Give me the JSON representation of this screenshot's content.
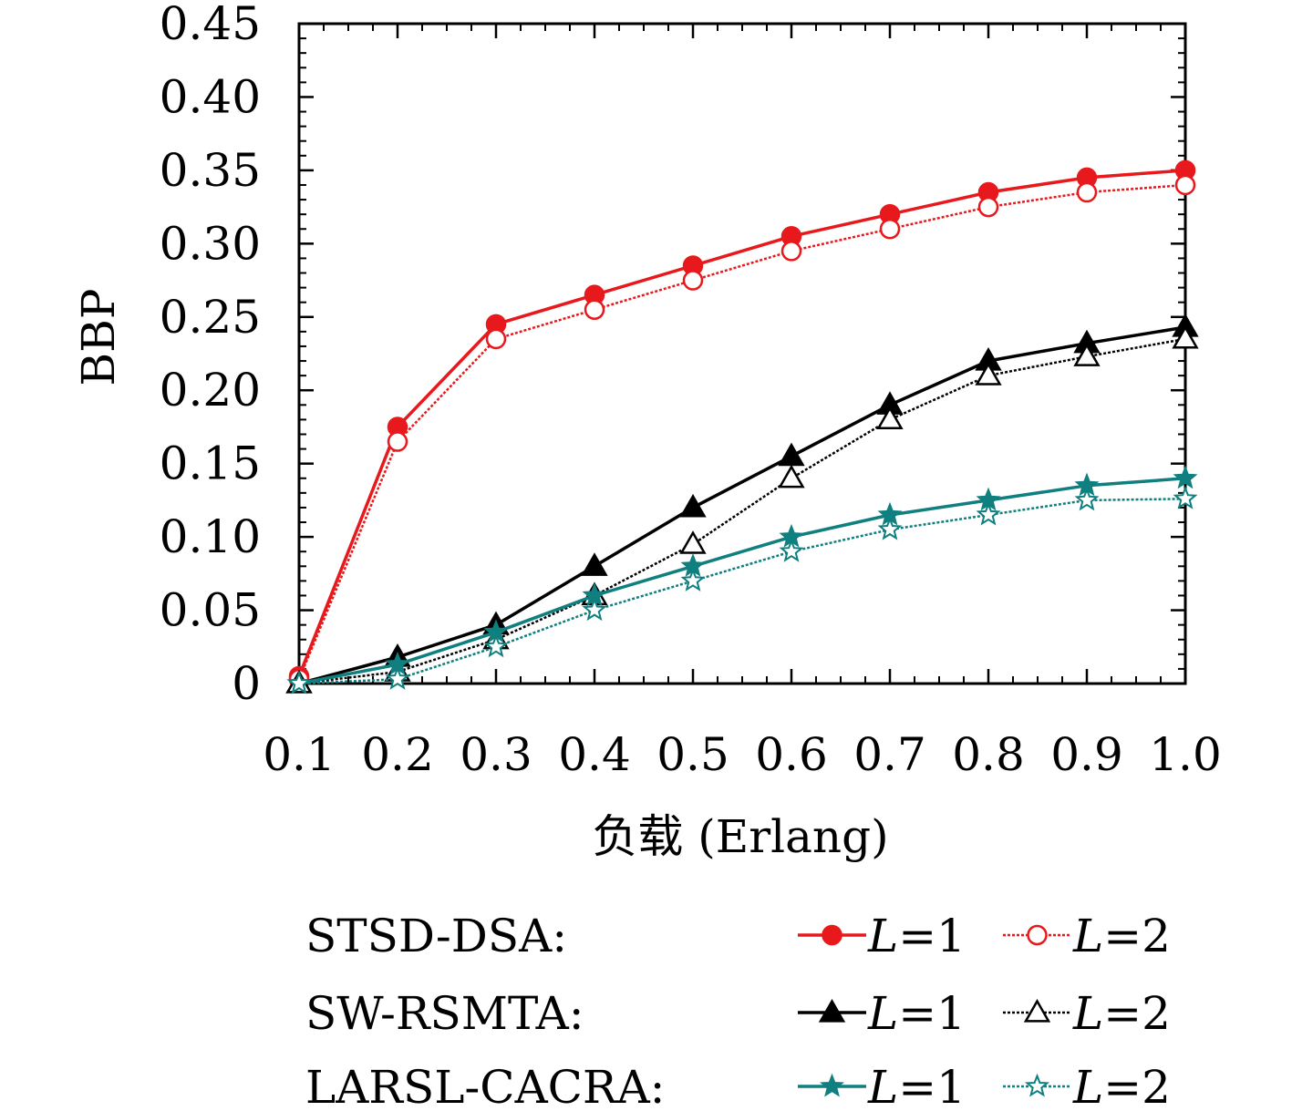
{
  "chart_data": {
    "type": "line",
    "title": "",
    "xlabel": "负载 (Erlang)",
    "ylabel": "BBP",
    "x": [
      0.1,
      0.2,
      0.3,
      0.4,
      0.5,
      0.6,
      0.7,
      0.8,
      0.9,
      1.0
    ],
    "x_tick_labels": [
      "0.1",
      "0.2",
      "0.3",
      "0.4",
      "0.5",
      "0.6",
      "0.7",
      "0.8",
      "0.9",
      "1.0"
    ],
    "y_ticks": [
      0,
      0.05,
      0.1,
      0.15,
      0.2,
      0.25,
      0.3,
      0.35,
      0.4,
      0.45
    ],
    "y_tick_labels": [
      "0",
      "0.05",
      "0.10",
      "0.15",
      "0.20",
      "0.25",
      "0.30",
      "0.35",
      "0.40",
      "0.45"
    ],
    "xlim": [
      0.1,
      1.0
    ],
    "ylim": [
      0,
      0.45
    ],
    "grid": false,
    "legend_placement": "bottom",
    "legend": {
      "rows": [
        {
          "group": "STSD-DSA:",
          "entries": [
            "L=1",
            "L=2"
          ]
        },
        {
          "group": "SW-RSMTA:",
          "entries": [
            "L=1",
            "L=2"
          ]
        },
        {
          "group": "LARSL-CACRA:",
          "entries": [
            "L=1",
            "L=2"
          ]
        }
      ]
    },
    "series": [
      {
        "group": "STSD-DSA",
        "label": "L=1",
        "color": "#e8191c",
        "marker": "circle-filled",
        "line": "solid",
        "values": [
          0.005,
          0.175,
          0.245,
          0.265,
          0.285,
          0.305,
          0.32,
          0.335,
          0.345,
          0.35
        ]
      },
      {
        "group": "STSD-DSA",
        "label": "L=2",
        "color": "#e8191c",
        "marker": "circle-open",
        "line": "dotted",
        "values": [
          0.003,
          0.165,
          0.235,
          0.255,
          0.275,
          0.295,
          0.31,
          0.325,
          0.335,
          0.34
        ]
      },
      {
        "group": "SW-RSMTA",
        "label": "L=1",
        "color": "#000000",
        "marker": "triangle-filled",
        "line": "solid",
        "values": [
          0.0,
          0.018,
          0.04,
          0.08,
          0.12,
          0.155,
          0.19,
          0.22,
          0.232,
          0.243
        ]
      },
      {
        "group": "SW-RSMTA",
        "label": "L=2",
        "color": "#000000",
        "marker": "triangle-open",
        "line": "dotted",
        "values": [
          0.0,
          0.008,
          0.03,
          0.06,
          0.095,
          0.14,
          0.18,
          0.21,
          0.223,
          0.235
        ]
      },
      {
        "group": "LARSL-CACRA",
        "label": "L=1",
        "color": "#0f7f7f",
        "marker": "star-filled",
        "line": "solid",
        "values": [
          0.0,
          0.013,
          0.035,
          0.06,
          0.08,
          0.1,
          0.115,
          0.125,
          0.135,
          0.14
        ]
      },
      {
        "group": "LARSL-CACRA",
        "label": "L=2",
        "color": "#0f7f7f",
        "marker": "star-open",
        "line": "dotted",
        "values": [
          0.0,
          0.003,
          0.025,
          0.05,
          0.07,
          0.09,
          0.105,
          0.115,
          0.125,
          0.126
        ]
      }
    ]
  }
}
